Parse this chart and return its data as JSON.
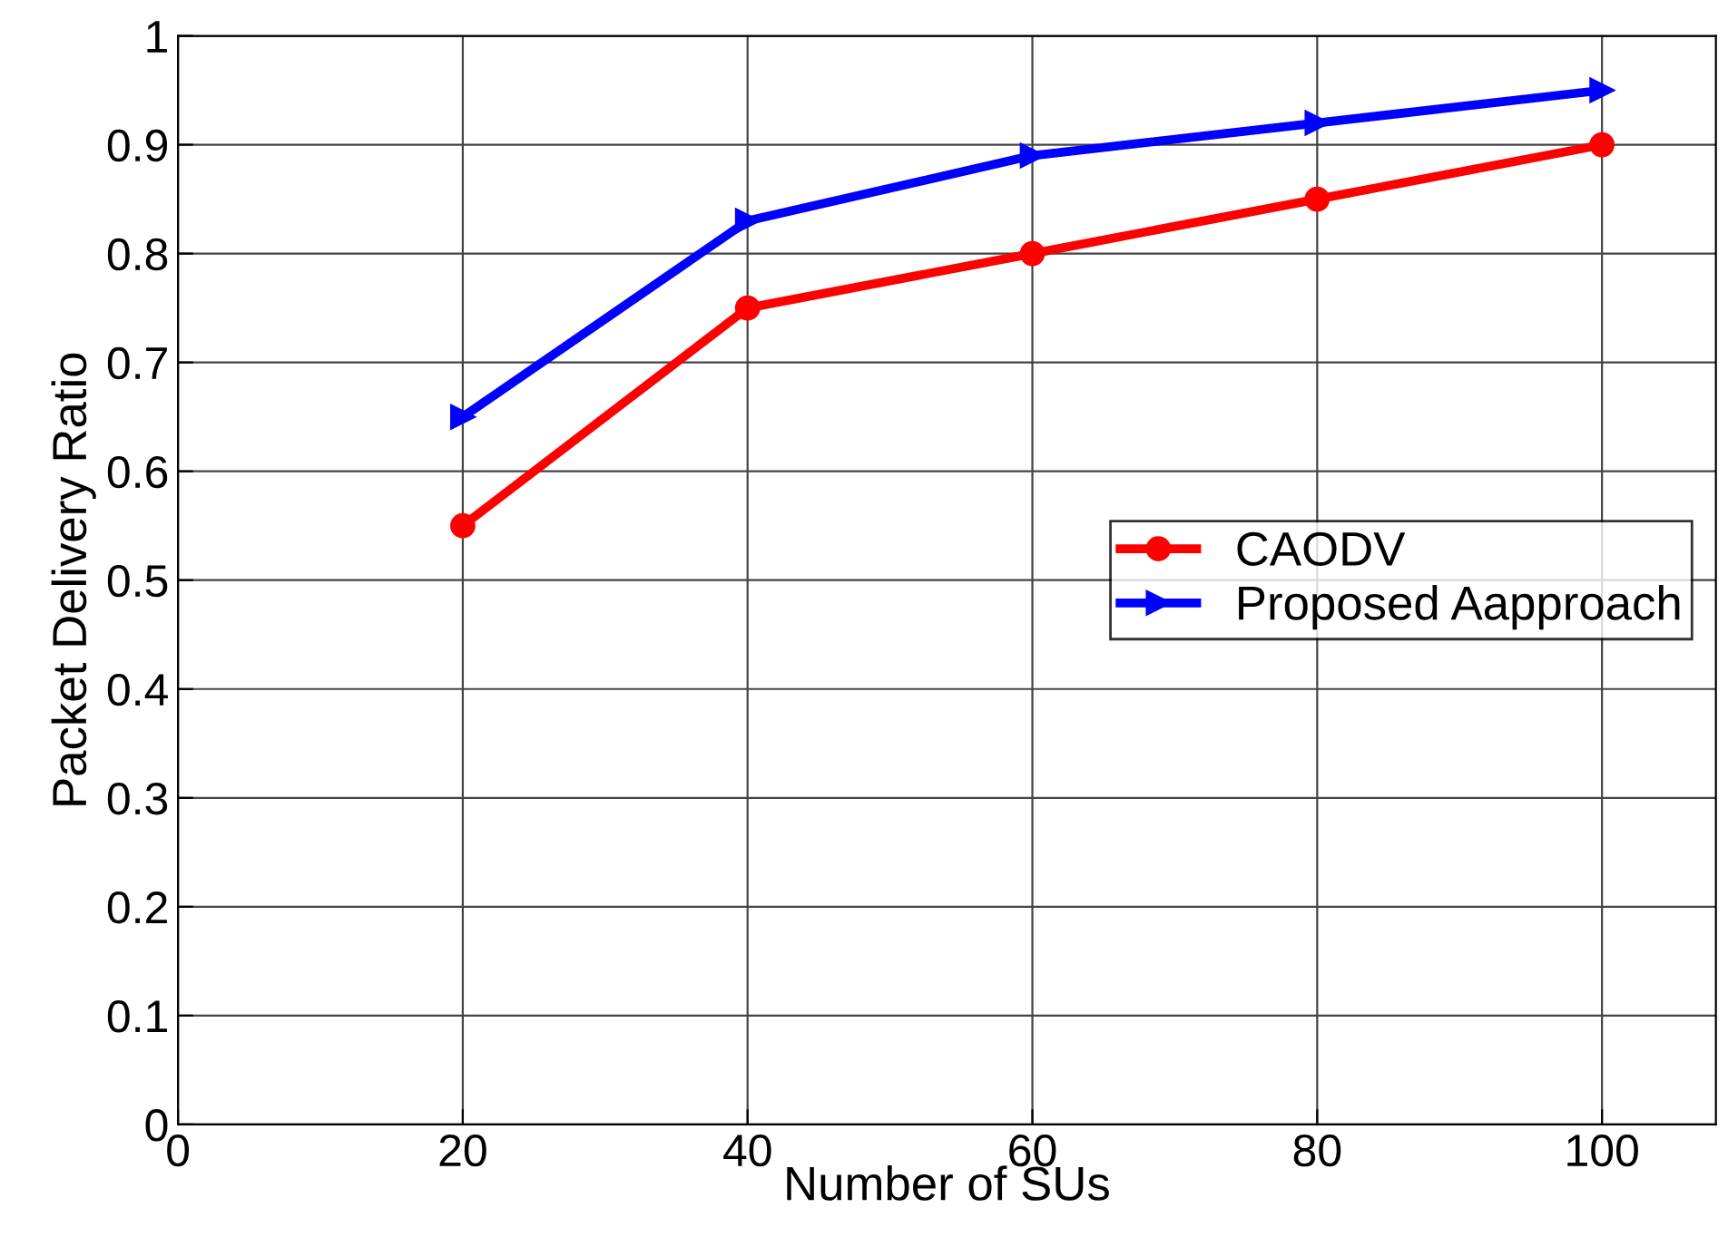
{
  "chart_data": {
    "type": "line",
    "xlabel": "Number of SUs",
    "ylabel": "Packet Delivery Ratio",
    "x": [
      20,
      40,
      60,
      80,
      100
    ],
    "series": [
      {
        "name": "CAODV",
        "color": "#ff0000",
        "values": [
          0.55,
          0.75,
          0.8,
          0.85,
          0.9
        ],
        "marker": "circle"
      },
      {
        "name": "Proposed Aapproach",
        "color": "#0000ff",
        "values": [
          0.65,
          0.83,
          0.89,
          0.92,
          0.95
        ],
        "marker": "triangle"
      }
    ],
    "xlim": [
      0,
      108
    ],
    "xticks": [
      0,
      20,
      40,
      60,
      80,
      100
    ],
    "ylim": [
      0,
      1
    ],
    "yticks": [
      0,
      0.1,
      0.2,
      0.3,
      0.4,
      0.5,
      0.6,
      0.7,
      0.8,
      0.9,
      1
    ],
    "grid": true,
    "legend": "right",
    "line_style": "solid"
  }
}
